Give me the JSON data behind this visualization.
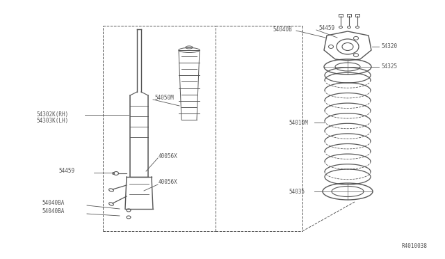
{
  "bg_color": "#ffffff",
  "line_color": "#555555",
  "text_color": "#555555",
  "fig_width": 6.4,
  "fig_height": 3.72,
  "dpi": 100,
  "diagram_id": "R4010038",
  "labels": {
    "54302K_RH": "54302K(RH)",
    "54303K_LH": "54303K(LH)",
    "54459_left": "54459",
    "54040BA_1": "54040BA",
    "54040BA_2": "54040BA",
    "40056X_upper": "40056X",
    "40056X_lower": "40056X",
    "54050M": "54050M",
    "54040B": "54040B",
    "54459_right": "54459",
    "54320": "54320",
    "54325": "54325",
    "54010M": "54010M",
    "54035": "54035"
  }
}
